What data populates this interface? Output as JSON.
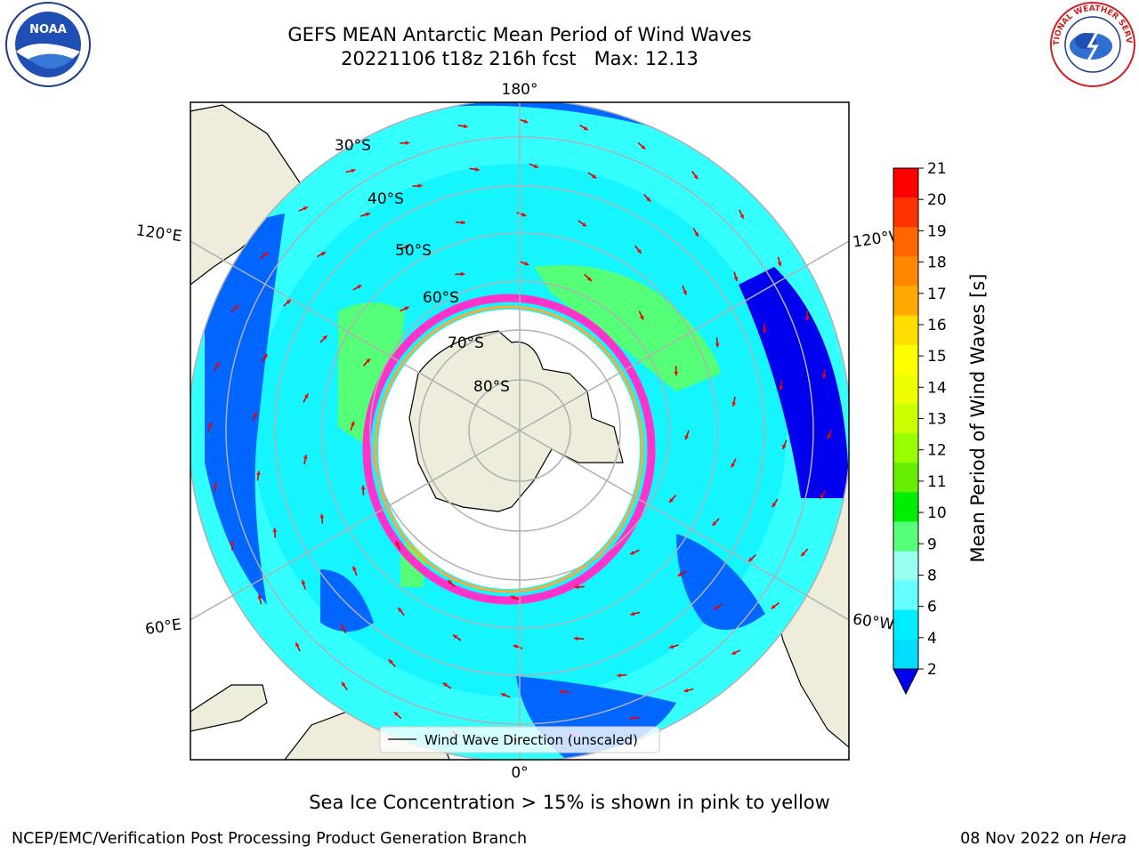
{
  "title": {
    "line1": "GEFS MEAN Antarctic Mean Period of Wind Waves",
    "line2": "20221106 t18z 216h fcst   Max: 12.13"
  },
  "logos": {
    "left": {
      "icon": "noaa-logo-icon",
      "text": "NOAA"
    },
    "right": {
      "icon": "nws-logo-icon",
      "text": "NATIONAL WEATHER SERVICE"
    }
  },
  "map": {
    "projection": "south-polar-stereographic",
    "lon_labels": {
      "top": "180°",
      "bottom": "0°",
      "upper_left": "120°E",
      "upper_right": "120°W",
      "lower_left": "60°E",
      "lower_right": "60°W"
    },
    "lat_labels": [
      "30°S",
      "40°S",
      "50°S",
      "60°S",
      "70°S",
      "80°S"
    ],
    "legend": "Wind Wave Direction (unscaled)",
    "colors": {
      "land": "#eeecda",
      "ocean_background": "#ffffff",
      "grid": "#b0b0b0",
      "arrow": "#ff0000",
      "ice_pink": "#ff33cc",
      "ice_orange": "#ffaa33"
    }
  },
  "colorbar": {
    "label": "Mean Period of Wind Waves [s]",
    "ticks": [
      "21",
      "20",
      "19",
      "18",
      "17",
      "16",
      "15",
      "14",
      "13",
      "12",
      "11",
      "10",
      "9",
      "8",
      "6",
      "4",
      "2"
    ],
    "colors": [
      "#ff0000",
      "#ff3300",
      "#ff6600",
      "#ff8800",
      "#ffaa00",
      "#ffdd00",
      "#ffff00",
      "#eeff00",
      "#ccff00",
      "#99ff00",
      "#66ee00",
      "#00ee00",
      "#55ff77",
      "#99ffee",
      "#66ffff",
      "#00eeff",
      "#00ddff",
      "#0066ff"
    ],
    "extend_color": "#0000ee"
  },
  "footer": {
    "note": "Sea Ice Concentration > 15% is shown in pink to yellow",
    "left": "NCEP/EMC/Verification Post Processing Product Generation Branch",
    "right_prefix": "08 Nov 2022 on ",
    "right_host": "Hera"
  }
}
